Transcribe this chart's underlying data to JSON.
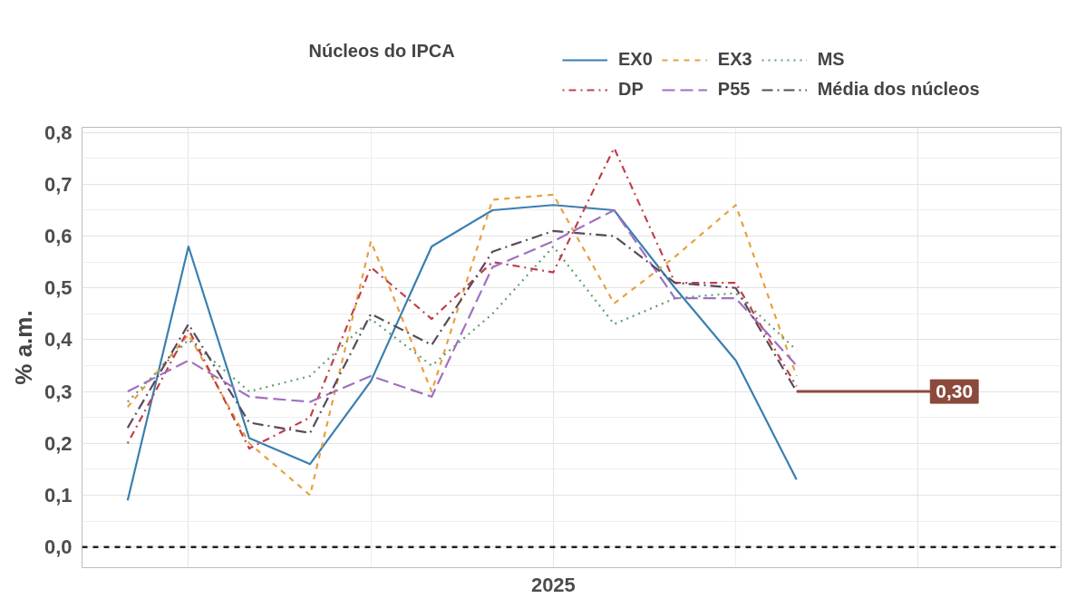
{
  "chart_data": {
    "type": "line",
    "ylabel": "% a.m.",
    "legend_title": "Núcleos do IPCA",
    "legend": "top",
    "grid": true,
    "categories": [
      null,
      null,
      null,
      null,
      null,
      null,
      null,
      "2025",
      null,
      null,
      null,
      null
    ],
    "ylim": [
      -0.04,
      0.81
    ],
    "yticks": [
      {
        "value": 0,
        "label": "0,0"
      },
      {
        "value": 0.1,
        "label": "0,1"
      },
      {
        "value": 0.2,
        "label": "0,2"
      },
      {
        "value": 0.3,
        "label": "0,3"
      },
      {
        "value": 0.4,
        "label": "0,4"
      },
      {
        "value": 0.5,
        "label": "0,5"
      },
      {
        "value": 0.6,
        "label": "0,6"
      },
      {
        "value": 0.7,
        "label": "0,7"
      },
      {
        "value": 0.8,
        "label": "0,8"
      }
    ],
    "series": [
      {
        "name": "EX0",
        "color": "#3a7fb0",
        "line_style": "solid",
        "values": [
          0.09,
          0.58,
          0.21,
          0.16,
          0.32,
          0.58,
          0.65,
          0.66,
          0.65,
          0.5,
          0.36,
          0.13
        ]
      },
      {
        "name": "EX3",
        "color": "#e8a040",
        "line_style": "dashed",
        "values": [
          0.27,
          0.41,
          0.2,
          0.1,
          0.59,
          0.3,
          0.67,
          0.68,
          0.47,
          0.56,
          0.66,
          0.33
        ]
      },
      {
        "name": "MS",
        "color": "#5f9e72",
        "line_style": "dotted",
        "values": [
          0.28,
          0.4,
          0.3,
          0.33,
          0.44,
          0.35,
          0.45,
          0.58,
          0.43,
          0.48,
          0.49,
          0.38
        ]
      },
      {
        "name": "DP",
        "color": "#c0404a",
        "line_style": "dotdash",
        "values": [
          0.2,
          0.42,
          0.19,
          0.25,
          0.54,
          0.44,
          0.55,
          0.53,
          0.77,
          0.51,
          0.51,
          0.31
        ]
      },
      {
        "name": "P55",
        "color": "#a070c0",
        "line_style": "longdash",
        "values": [
          0.3,
          0.36,
          0.29,
          0.28,
          0.33,
          0.29,
          0.54,
          0.59,
          0.65,
          0.48,
          0.48,
          0.35
        ]
      },
      {
        "name": "Média dos núcleos",
        "color": "#5a4a5a",
        "line_style": "longdashdot",
        "values": [
          0.23,
          0.43,
          0.24,
          0.22,
          0.45,
          0.39,
          0.57,
          0.61,
          0.6,
          0.51,
          0.5,
          0.3
        ]
      }
    ],
    "ref_lines": [
      {
        "axis": "y",
        "value": 0,
        "label": null,
        "color": "#222222",
        "line_style": "dashed"
      }
    ],
    "annotations": [
      "0,30"
    ]
  }
}
